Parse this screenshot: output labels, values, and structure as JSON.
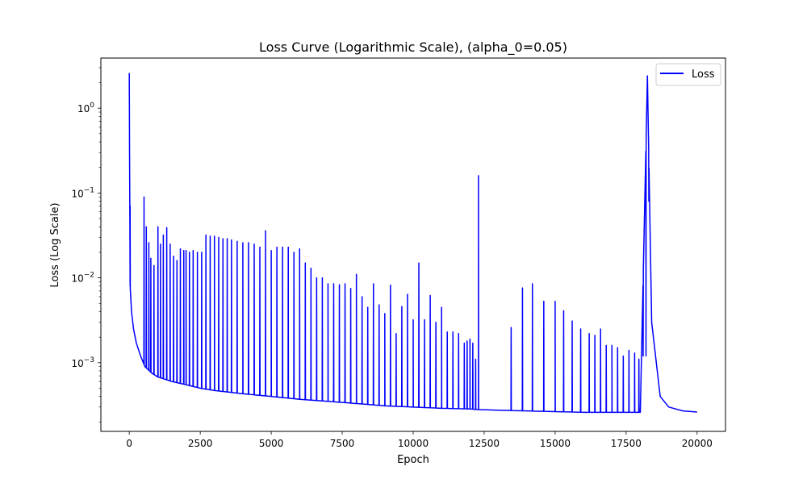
{
  "chart_data": {
    "type": "line",
    "title": "Loss Curve (Logarithmic Scale), (alpha_0=0.05)",
    "xlabel": "Epoch",
    "ylabel": "Loss (Log Scale)",
    "yscale": "log",
    "xlim": [
      -1000,
      21000
    ],
    "ylim": [
      0.000155,
      3.9
    ],
    "grid": false,
    "legend_position": "top-right",
    "x_ticks": [
      0,
      2500,
      5000,
      7500,
      10000,
      12500,
      15000,
      17500,
      20000
    ],
    "x_tick_labels": [
      "0",
      "2500",
      "5000",
      "7500",
      "10000",
      "12500",
      "15000",
      "17500",
      "20000"
    ],
    "y_ticks": [
      0.001,
      0.01,
      0.1,
      1
    ],
    "y_tick_labels": [
      {
        "base": "10",
        "exp": "−3"
      },
      {
        "base": "10",
        "exp": "−2"
      },
      {
        "base": "10",
        "exp": "−1"
      },
      {
        "base": "10",
        "exp": "0"
      }
    ],
    "series": [
      {
        "name": "Loss",
        "color": "#0000ff",
        "baseline": {
          "x": [
            0,
            30,
            80,
            150,
            250,
            400,
            550,
            800,
            1000,
            1500,
            2000,
            2500,
            3000,
            4000,
            5000,
            6000,
            7000,
            8000,
            9000,
            10000,
            11000,
            12000,
            12300,
            13000,
            14000,
            15000,
            16000,
            17000,
            18000,
            18250,
            18400,
            18700,
            19000,
            19500,
            20000
          ],
          "y": [
            2.6,
            0.008,
            0.004,
            0.0025,
            0.0017,
            0.0012,
            0.0009,
            0.00075,
            0.00068,
            0.0006,
            0.00055,
            0.0005,
            0.00047,
            0.00043,
            0.0004,
            0.00037,
            0.00035,
            0.00033,
            0.00031,
            0.0003,
            0.00029,
            0.000285,
            0.00028,
            0.000275,
            0.00027,
            0.000265,
            0.00026,
            0.00026,
            0.00026,
            2.4,
            0.003,
            0.0004,
            0.0003,
            0.00027,
            0.000262
          ]
        },
        "spikes": {
          "x": [
            10,
            30,
            520,
            600,
            690,
            760,
            870,
            1010,
            1100,
            1200,
            1320,
            1440,
            1560,
            1680,
            1800,
            1920,
            2000,
            2120,
            2250,
            2400,
            2550,
            2700,
            2850,
            3000,
            3150,
            3300,
            3450,
            3600,
            3800,
            4000,
            4200,
            4400,
            4600,
            4800,
            5000,
            5200,
            5400,
            5600,
            5800,
            6000,
            6200,
            6400,
            6600,
            6800,
            7000,
            7200,
            7400,
            7600,
            7800,
            8000,
            8200,
            8400,
            8600,
            8800,
            9000,
            9200,
            9400,
            9600,
            9800,
            10000,
            10200,
            10400,
            10600,
            10800,
            11000,
            11200,
            11400,
            11600,
            11800,
            11900,
            12000,
            12100,
            12200,
            12300,
            13450,
            13850,
            14200,
            14600,
            15000,
            15300,
            15600,
            15900,
            16200,
            16400,
            16600,
            16800,
            17000,
            17200,
            17400,
            17600,
            17800,
            17950,
            18100,
            18200,
            18300
          ],
          "y": [
            0.3,
            0.07,
            0.09,
            0.04,
            0.026,
            0.017,
            0.014,
            0.04,
            0.025,
            0.032,
            0.039,
            0.025,
            0.018,
            0.016,
            0.022,
            0.021,
            0.021,
            0.02,
            0.021,
            0.02,
            0.02,
            0.032,
            0.031,
            0.031,
            0.03,
            0.029,
            0.029,
            0.028,
            0.027,
            0.026,
            0.026,
            0.025,
            0.023,
            0.036,
            0.021,
            0.023,
            0.023,
            0.023,
            0.02,
            0.022,
            0.015,
            0.013,
            0.01,
            0.01,
            0.0085,
            0.0085,
            0.0083,
            0.0085,
            0.0075,
            0.011,
            0.006,
            0.0045,
            0.0085,
            0.0048,
            0.0038,
            0.0082,
            0.0022,
            0.0046,
            0.0064,
            0.0032,
            0.015,
            0.0032,
            0.0062,
            0.003,
            0.0045,
            0.0023,
            0.0023,
            0.0022,
            0.0017,
            0.0018,
            0.0019,
            0.0017,
            0.0011,
            0.16,
            0.0026,
            0.0076,
            0.0085,
            0.0053,
            0.0053,
            0.0041,
            0.0031,
            0.0025,
            0.0022,
            0.0021,
            0.0025,
            0.0016,
            0.0016,
            0.0015,
            0.0012,
            0.0014,
            0.0013,
            0.0011,
            0.0012,
            0.0012,
            0.08
          ]
        }
      }
    ]
  }
}
